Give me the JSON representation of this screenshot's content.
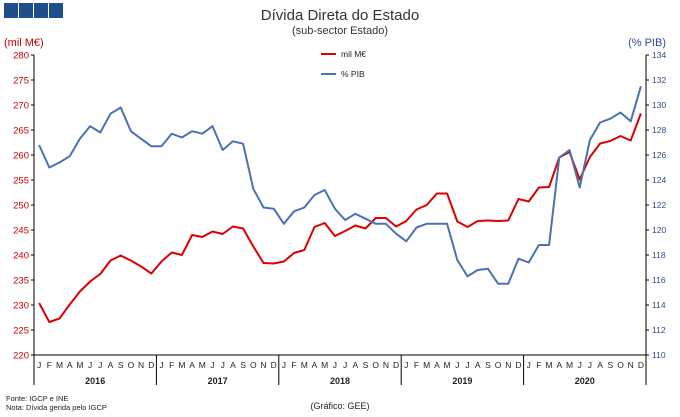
{
  "title": "Dívida Direta do Estado",
  "subtitle": "(sub-sector Estado)",
  "footnotes": [
    "Fonte: IGCP e INE",
    "Nota: Dívida gerida pelo IGCP"
  ],
  "credit": "(Gráfico: GEE)",
  "colors": {
    "logo": "#1f4e8c",
    "debt": "#dd0000",
    "pib": "#4a72b0"
  },
  "chart_data": {
    "type": "line",
    "title": "Dívida Direta do Estado",
    "subtitle": "(sub-sector Estado)",
    "ylabel_left": "(mil M€)",
    "ylabel_right": "(% PIB)",
    "ylim_left": [
      220,
      280
    ],
    "yticks_left": [
      220,
      225,
      230,
      235,
      240,
      245,
      250,
      255,
      260,
      265,
      270,
      275,
      280
    ],
    "ylim_right": [
      110,
      134
    ],
    "yticks_right": [
      110,
      112,
      114,
      116,
      118,
      120,
      122,
      124,
      126,
      128,
      130,
      132,
      134
    ],
    "month_labels": [
      "J",
      "F",
      "M",
      "A",
      "M",
      "J",
      "J",
      "A",
      "S",
      "O",
      "N",
      "D"
    ],
    "years": [
      "2016",
      "2017",
      "2018",
      "2019",
      "2020"
    ],
    "grid": false,
    "legend_position": "top-center",
    "series": [
      {
        "name": "mil M€",
        "axis": "left",
        "color": "#dd0000",
        "values": [
          230.4,
          226.6,
          227.3,
          230.1,
          232.7,
          234.7,
          236.2,
          238.9,
          239.9,
          238.9,
          237.7,
          236.3,
          238.7,
          240.5,
          240.0,
          244.0,
          243.6,
          244.7,
          244.2,
          245.7,
          245.3,
          241.7,
          238.4,
          238.3,
          238.7,
          240.4,
          241.0,
          245.6,
          246.4,
          243.8,
          244.8,
          245.9,
          245.3,
          247.4,
          247.4,
          245.7,
          246.8,
          249.1,
          250.0,
          252.3,
          252.3,
          246.7,
          245.6,
          246.8,
          246.9,
          246.8,
          246.9,
          251.2,
          250.7,
          253.5,
          253.6,
          259.5,
          260.6,
          255.1,
          259.6,
          262.3,
          262.8,
          263.8,
          262.9,
          268.3
        ]
      },
      {
        "name": "% PIB",
        "axis": "right",
        "color": "#4a72b0",
        "values": [
          126.8,
          125.0,
          125.4,
          125.9,
          127.3,
          128.3,
          127.8,
          129.3,
          129.8,
          127.9,
          127.3,
          126.7,
          126.7,
          127.7,
          127.4,
          127.9,
          127.7,
          128.3,
          126.4,
          127.1,
          126.9,
          123.3,
          121.8,
          121.7,
          120.5,
          121.5,
          121.8,
          122.8,
          123.2,
          121.7,
          120.8,
          121.3,
          120.9,
          120.5,
          120.5,
          119.7,
          119.1,
          120.2,
          120.5,
          120.5,
          120.5,
          117.6,
          116.3,
          116.8,
          116.9,
          115.7,
          115.7,
          117.7,
          117.4,
          118.8,
          118.8,
          125.8,
          126.4,
          123.4,
          127.2,
          128.6,
          128.9,
          129.4,
          128.7,
          131.5
        ]
      }
    ]
  }
}
